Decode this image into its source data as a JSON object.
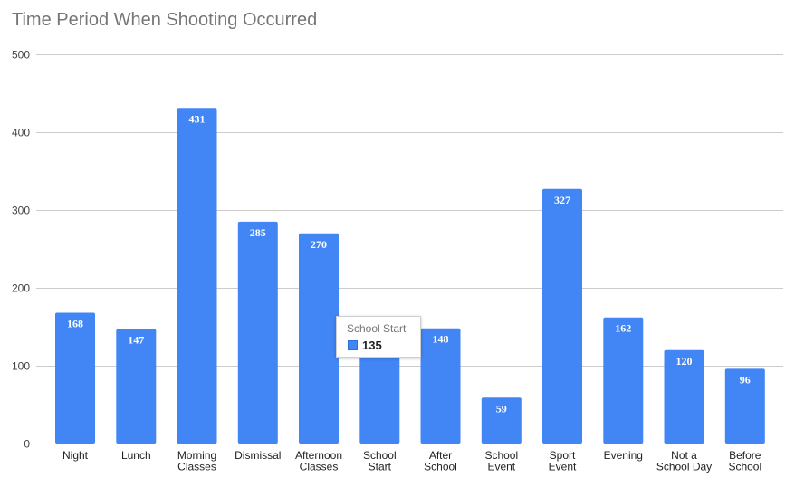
{
  "chart_data": {
    "type": "bar",
    "title": "Time Period When Shooting Occurred",
    "xlabel": "",
    "ylabel": "",
    "ylim": [
      0,
      500
    ],
    "yticks": [
      0,
      100,
      200,
      300,
      400,
      500
    ],
    "grid": true,
    "categories": [
      [
        "Night"
      ],
      [
        "Lunch"
      ],
      [
        "Morning",
        "Classes"
      ],
      [
        "Dismissal"
      ],
      [
        "Afternoon",
        "Classes"
      ],
      [
        "School",
        "Start"
      ],
      [
        "After",
        "School"
      ],
      [
        "School",
        "Event"
      ],
      [
        "Sport",
        "Event"
      ],
      [
        "Evening"
      ],
      [
        "Not a",
        "School Day"
      ],
      [
        "Before",
        "School"
      ]
    ],
    "values": [
      168,
      147,
      431,
      285,
      270,
      135,
      148,
      59,
      327,
      162,
      120,
      96
    ],
    "bar_color": "#4285f4",
    "tooltip": {
      "category": "School Start",
      "value": "135"
    }
  }
}
